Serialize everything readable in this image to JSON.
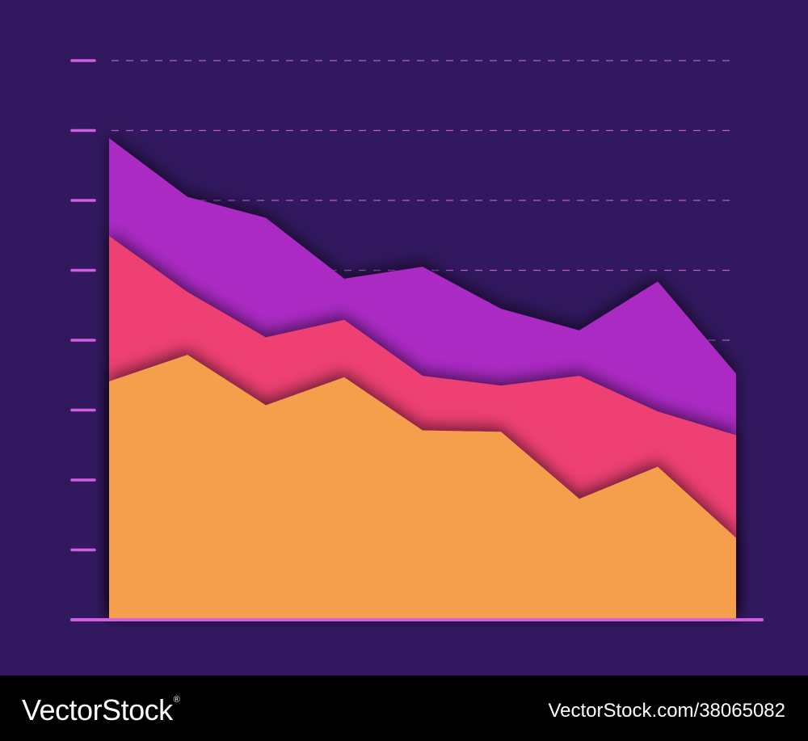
{
  "chart_data": {
    "type": "area",
    "stacked": true,
    "title": "",
    "xlabel": "",
    "ylabel": "",
    "x": [
      1,
      2,
      3,
      4,
      5,
      6,
      7,
      8,
      9
    ],
    "ylim": [
      0,
      8
    ],
    "y_ticks": [
      1,
      2,
      3,
      4,
      5,
      6,
      7,
      8
    ],
    "grid": "dashed horizontal lines",
    "legend": "none",
    "series": [
      {
        "color": "#f59e4b",
        "values": [
          3.41,
          3.79,
          3.07,
          3.47,
          2.71,
          2.69,
          1.73,
          2.19,
          1.17
        ]
      },
      {
        "color": "#ee3f73",
        "values": [
          2.08,
          0.9,
          0.97,
          0.82,
          0.78,
          0.66,
          1.76,
          0.79,
          1.47
        ]
      },
      {
        "color": "#ab29c4",
        "values": [
          1.4,
          1.36,
          1.71,
          0.59,
          1.56,
          1.1,
          0.65,
          1.86,
          0.88
        ]
      }
    ]
  },
  "colors": {
    "background": "#32185f",
    "axis": "#cf5fe0",
    "grid": "#b95ad6",
    "footer": "#000000"
  },
  "footer": {
    "brand": "VectorStock",
    "brand_mark": "®",
    "image_id": "VectorStock.com/38065082"
  }
}
